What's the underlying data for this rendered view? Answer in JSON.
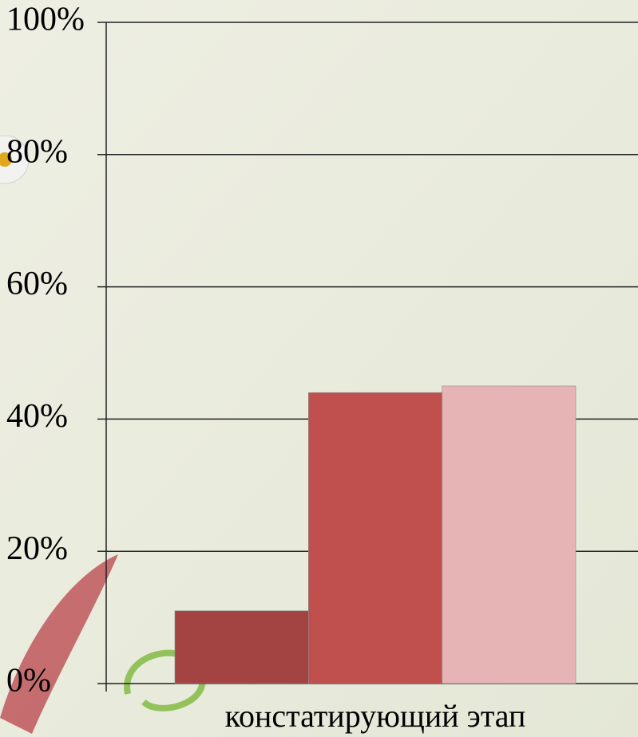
{
  "chart_data": {
    "type": "bar",
    "categories": [
      "констатирующий этап"
    ],
    "series": [
      {
        "color": "#a34442",
        "values": [
          11
        ]
      },
      {
        "color": "#c0504d",
        "values": [
          44
        ]
      },
      {
        "color": "#e6b4b4",
        "values": [
          45
        ]
      }
    ],
    "ylim": [
      0,
      100
    ],
    "yticks": [
      {
        "value": 0,
        "label": "0%"
      },
      {
        "value": 20,
        "label": "20%"
      },
      {
        "value": 40,
        "label": "40%"
      },
      {
        "value": 60,
        "label": "60%"
      },
      {
        "value": 80,
        "label": "80%"
      },
      {
        "value": 100,
        "label": "100%"
      }
    ],
    "grid": true
  }
}
